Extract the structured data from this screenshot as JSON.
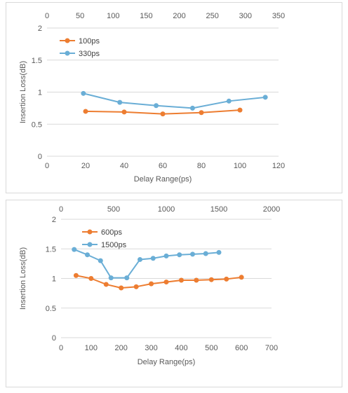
{
  "chart_data": [
    {
      "type": "line",
      "xlabel": "Delay Range(ps)",
      "ylabel": "Insertion Loss(dB)",
      "x_bottom": {
        "min": 0,
        "max": 120,
        "ticks": [
          0,
          20,
          40,
          60,
          80,
          100,
          120
        ]
      },
      "x_top": {
        "min": 0,
        "max": 350,
        "ticks": [
          0,
          50,
          100,
          150,
          200,
          250,
          300,
          350
        ]
      },
      "ylim": [
        0,
        2
      ],
      "yticks": [
        "0",
        "0.5",
        "1",
        "1.5",
        "2"
      ],
      "grid": "horizontal",
      "legend_position": "top-left",
      "series": [
        {
          "name": "100ps",
          "axis": "bottom",
          "color": "#ed7d31",
          "x": [
            20,
            40,
            60,
            80,
            100
          ],
          "y": [
            0.7,
            0.69,
            0.66,
            0.68,
            0.72
          ]
        },
        {
          "name": "330ps",
          "axis": "top",
          "color": "#6aaed6",
          "x": [
            55,
            110,
            165,
            220,
            275,
            330
          ],
          "y": [
            0.98,
            0.84,
            0.79,
            0.75,
            0.86,
            0.92
          ]
        }
      ]
    },
    {
      "type": "line",
      "xlabel": "Delay Range(ps)",
      "ylabel": "Insertion Loss(dB)",
      "x_bottom": {
        "min": 0,
        "max": 700,
        "ticks": [
          0,
          100,
          200,
          300,
          400,
          500,
          600,
          700
        ]
      },
      "x_top": {
        "min": 0,
        "max": 2000,
        "ticks": [
          0,
          500,
          1000,
          1500,
          2000
        ]
      },
      "ylim": [
        0,
        2
      ],
      "yticks": [
        "0",
        "0.5",
        "1",
        "1.5",
        "2"
      ],
      "grid": "horizontal",
      "legend_position": "top-left",
      "series": [
        {
          "name": "600ps",
          "axis": "bottom",
          "color": "#ed7d31",
          "x": [
            50,
            100,
            150,
            200,
            250,
            300,
            350,
            400,
            450,
            500,
            550,
            600
          ],
          "y": [
            1.05,
            1.0,
            0.9,
            0.84,
            0.86,
            0.91,
            0.94,
            0.97,
            0.97,
            0.98,
            0.99,
            1.02
          ]
        },
        {
          "name": "1500ps",
          "axis": "top",
          "color": "#6aaed6",
          "x": [
            125,
            250,
            375,
            475,
            625,
            750,
            875,
            1000,
            1125,
            1250,
            1375,
            1500
          ],
          "y": [
            1.49,
            1.4,
            1.3,
            1.01,
            1.01,
            1.32,
            1.34,
            1.38,
            1.4,
            1.41,
            1.42,
            1.44
          ]
        }
      ]
    }
  ]
}
